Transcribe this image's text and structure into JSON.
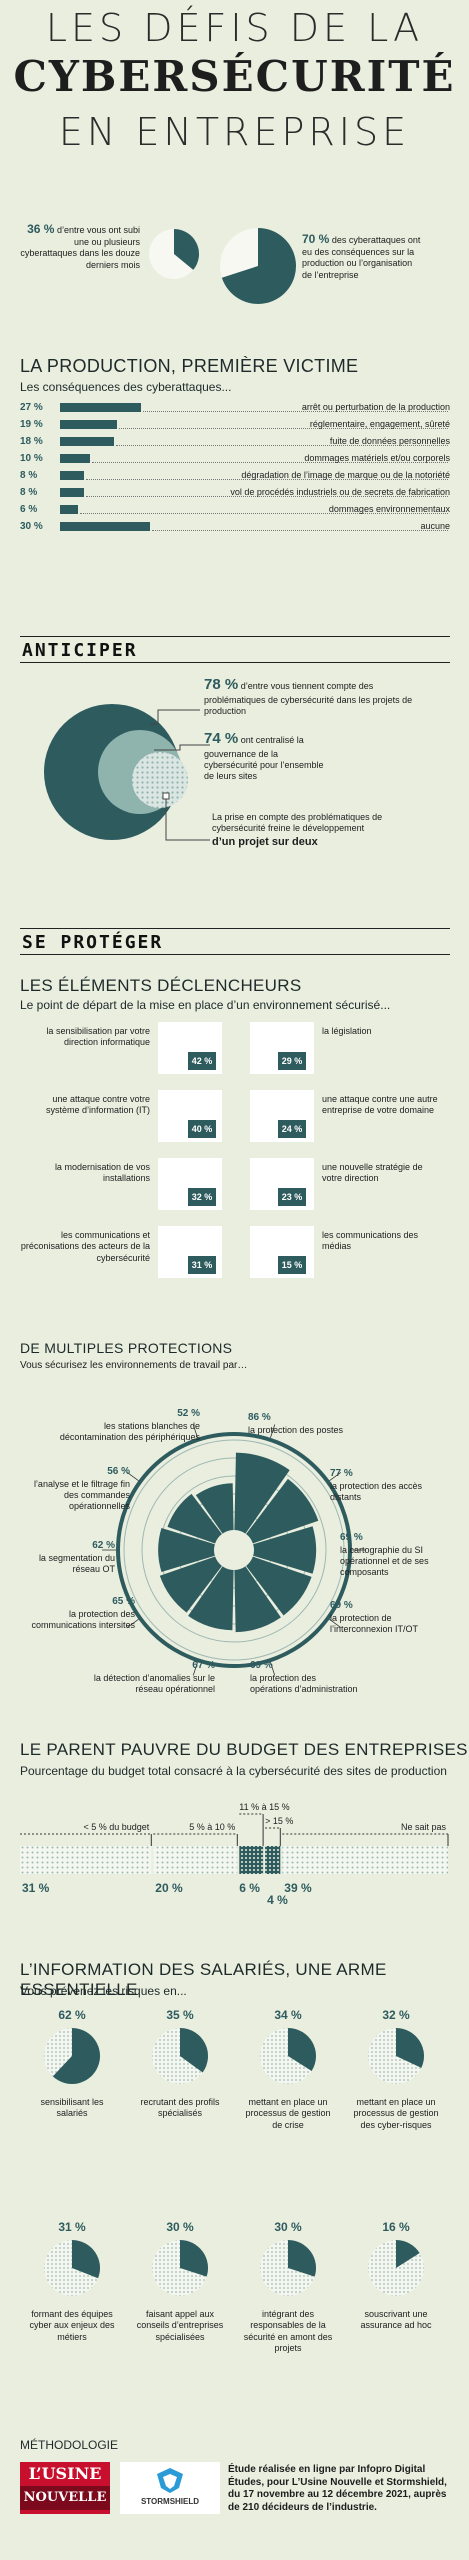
{
  "title": {
    "line1": "LES DÉFIS DE LA",
    "line2": "CYBERSÉCURITÉ",
    "line3": "EN ENTREPRISE"
  },
  "intro": {
    "left": {
      "pct": "36 %",
      "text": "d’entre vous ont subi une ou plusieurs cyberattaques dans les douze derniers mois",
      "value": 36
    },
    "right": {
      "pct": "70 %",
      "text": "des cyberattaques ont eu des conséquences sur la production ou l’organisation de l’entreprise",
      "value": 70
    }
  },
  "production": {
    "title": "LA PRODUCTION, PREMIÈRE VICTIME",
    "subtitle": "Les conséquences des cyberattaques...",
    "rows": [
      {
        "pct": "27 %",
        "value": 27,
        "label": "arrêt ou perturbation de la production"
      },
      {
        "pct": "19 %",
        "value": 19,
        "label": "réglementaire, engagement, sûreté"
      },
      {
        "pct": "18 %",
        "value": 18,
        "label": "fuite de données personnelles"
      },
      {
        "pct": "10 %",
        "value": 10,
        "label": "dommages matériels et/ou corporels"
      },
      {
        "pct": "8 %",
        "value": 8,
        "label": "dégradation de l’image de marque ou de la notoriété"
      },
      {
        "pct": "8 %",
        "value": 8,
        "label": "vol de procédés industriels ou de secrets de fabrication"
      },
      {
        "pct": "6 %",
        "value": 6,
        "label": "dommages environnementaux"
      },
      {
        "pct": "30 %",
        "value": 30,
        "label": "aucune"
      }
    ]
  },
  "anticiper": {
    "title": "ANTICIPER",
    "a": {
      "pct": "78 %",
      "text": "d’entre vous tiennent compte des problématiques de cybersécurité dans les projets de production"
    },
    "b": {
      "pct": "74 %",
      "text": "ont centralisé la gouvernance de la cybersécurité pour l’ensemble de leurs sites"
    },
    "c": {
      "text": "La prise en compte des problématiques de cybersécurité freine le développement",
      "bold": "d’un projet sur deux"
    }
  },
  "proteger": {
    "title": "SE PROTÉGER",
    "sub1": "LES ÉLÉMENTS DÉCLENCHEURS",
    "sub1b": "Le point de départ de la mise en place d’un environnement sécurisé...",
    "triggers": [
      {
        "left": "la sensibilisation par votre direction informatique",
        "lpct": "42 %",
        "rpct": "29 %",
        "right": "la législation"
      },
      {
        "left": "une attaque contre votre système d’information (IT)",
        "lpct": "40 %",
        "rpct": "24 %",
        "right": "une attaque contre une autre entreprise de votre domaine"
      },
      {
        "left": "la modernisation de vos installations",
        "lpct": "32 %",
        "rpct": "23 %",
        "right": "une nouvelle stratégie de votre direction"
      },
      {
        "left": "les communications et préconisations des acteurs de la cybersécurité",
        "lpct": "31 %",
        "rpct": "15 %",
        "right": "les communications des médias"
      }
    ],
    "sub2": "DE MULTIPLES PROTECTIONS",
    "sub2b": "Vous sécurisez les environnements de travail par…",
    "radial": [
      {
        "pct": "86 %",
        "label": "la protection des postes",
        "value": 86
      },
      {
        "pct": "77 %",
        "label": "la protection des accès distants",
        "value": 77
      },
      {
        "pct": "69 %",
        "label": "la cartographie du SI opérationnel et de ses composants",
        "value": 69
      },
      {
        "pct": "69 %",
        "label": "la protection de l’interconnexion IT/OT",
        "value": 69
      },
      {
        "pct": "69 %",
        "label": "la protection des opérations d’administration",
        "value": 69
      },
      {
        "pct": "67 %",
        "label": "la détection d’anomalies sur le réseau opérationnel",
        "value": 67
      },
      {
        "pct": "65 %",
        "label": "la protection des communications intersites",
        "value": 65
      },
      {
        "pct": "62 %",
        "label": "la segmentation du réseau OT",
        "value": 62
      },
      {
        "pct": "56 %",
        "label": "l’analyse et le filtrage fin des commandes opérationnelles",
        "value": 56
      },
      {
        "pct": "52 %",
        "label": "les stations blanches de décontamination des périphériques",
        "value": 52
      }
    ]
  },
  "budget": {
    "title": "LE PARENT PAUVRE DU BUDGET DES ENTREPRISES",
    "subtitle": "Pourcentage du budget total consacré à la cybersécurité des sites de production",
    "segments": [
      {
        "label": "< 5 % du budget",
        "pct": "31 %",
        "value": 31
      },
      {
        "label": "5 % à 10 %",
        "pct": "20 %",
        "value": 20
      },
      {
        "label": "11 % à 15 %",
        "pct": "6 %",
        "value": 6
      },
      {
        "label": "> 15 %",
        "pct": "4 %",
        "value": 4
      },
      {
        "label": "Ne sait pas",
        "pct": "39 %",
        "value": 39
      }
    ]
  },
  "information": {
    "title": "L’INFORMATION DES SALARIÉS, UNE ARME ESSENTIELLE",
    "subtitle": "Vous prévenez les risques en...",
    "items": [
      {
        "pct": "62 %",
        "value": 62,
        "label": "sensibilisant les salariés"
      },
      {
        "pct": "35 %",
        "value": 35,
        "label": "recrutant des profils spécialisés"
      },
      {
        "pct": "34 %",
        "value": 34,
        "label": "mettant en place un processus de gestion de crise"
      },
      {
        "pct": "32 %",
        "value": 32,
        "label": "mettant en place un processus de gestion des cyber-risques"
      },
      {
        "pct": "31 %",
        "value": 31,
        "label": "formant des équipes cyber aux enjeux des métiers"
      },
      {
        "pct": "30 %",
        "value": 30,
        "label": "faisant appel aux conseils d’entreprises spécialisées"
      },
      {
        "pct": "30 %",
        "value": 30,
        "label": "intégrant des responsables de la sécurité en amont des projets"
      },
      {
        "pct": "16 %",
        "value": 16,
        "label": "souscrivant une assurance ad hoc"
      }
    ]
  },
  "methodologie": {
    "title": "MÉTHODOLOGIE",
    "logo1_top": "L’USINE",
    "logo1_bottom": "NOUVELLE",
    "logo2": "STORMSHIELD",
    "text": "Étude réalisée en ligne par Infopro Digital Études, pour L’Usine Nouvelle et Stormshield, du 17 novembre au 12 décembre 2021, auprès de 210 décideurs de l’industrie."
  },
  "colors": {
    "teal": "#2e5b5e",
    "bg": "#e9eedf",
    "light": "#8fb3ad",
    "dots": "#b9cfcb"
  }
}
